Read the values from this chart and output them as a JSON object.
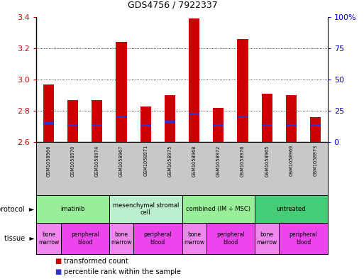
{
  "title": "GDS4756 / 7922337",
  "samples": [
    "GSM1058966",
    "GSM1058970",
    "GSM1058974",
    "GSM1058967",
    "GSM1058971",
    "GSM1058975",
    "GSM1058968",
    "GSM1058972",
    "GSM1058976",
    "GSM1058965",
    "GSM1058969",
    "GSM1058973"
  ],
  "bar_tops": [
    2.97,
    2.87,
    2.87,
    3.24,
    2.83,
    2.9,
    3.39,
    2.82,
    3.26,
    2.91,
    2.9,
    2.76
  ],
  "bar_bottom": 2.6,
  "blue_positions": [
    2.72,
    2.71,
    2.71,
    2.76,
    2.71,
    2.73,
    2.78,
    2.71,
    2.76,
    2.71,
    2.71,
    2.71
  ],
  "ylim_left": [
    2.6,
    3.4
  ],
  "ylim_right": [
    0,
    100
  ],
  "yticks_left": [
    2.6,
    2.8,
    3.0,
    3.2,
    3.4
  ],
  "yticks_right": [
    0,
    25,
    50,
    75,
    100
  ],
  "ytick_labels_right": [
    "0",
    "25",
    "50",
    "75",
    "100%"
  ],
  "bar_color": "#cc0000",
  "blue_color": "#3333cc",
  "protocol_groups": [
    {
      "label": "imatinib",
      "start": 0,
      "end": 3,
      "color": "#99ee99"
    },
    {
      "label": "mesenchymal stromal\ncell",
      "start": 3,
      "end": 6,
      "color": "#bbeecc"
    },
    {
      "label": "combined (IM + MSC)",
      "start": 6,
      "end": 9,
      "color": "#99ee99"
    },
    {
      "label": "untreated",
      "start": 9,
      "end": 12,
      "color": "#44cc77"
    }
  ],
  "tissue_blocks": [
    {
      "label": "bone\nmarrow",
      "start": 0,
      "end": 1,
      "color": "#ee88ee"
    },
    {
      "label": "peripheral\nblood",
      "start": 1,
      "end": 3,
      "color": "#ee44ee"
    },
    {
      "label": "bone\nmarrow",
      "start": 3,
      "end": 4,
      "color": "#ee88ee"
    },
    {
      "label": "peripheral\nblood",
      "start": 4,
      "end": 6,
      "color": "#ee44ee"
    },
    {
      "label": "bone\nmarrow",
      "start": 6,
      "end": 7,
      "color": "#ee88ee"
    },
    {
      "label": "peripheral\nblood",
      "start": 7,
      "end": 9,
      "color": "#ee44ee"
    },
    {
      "label": "bone\nmarrow",
      "start": 9,
      "end": 10,
      "color": "#ee88ee"
    },
    {
      "label": "peripheral\nblood",
      "start": 10,
      "end": 12,
      "color": "#ee44ee"
    }
  ],
  "background_color": "#ffffff",
  "tick_color_left": "#cc0000",
  "tick_color_right": "#0000cc",
  "hgrid_vals": [
    2.8,
    3.0,
    3.2
  ]
}
